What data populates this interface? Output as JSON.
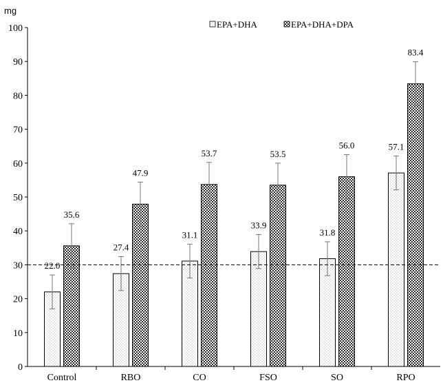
{
  "chart_data": {
    "type": "bar",
    "title": "",
    "xlabel": "",
    "ylabel": "mg",
    "ylim": [
      0,
      100
    ],
    "yticks": [
      0,
      10,
      20,
      30,
      40,
      50,
      60,
      70,
      80,
      90,
      100
    ],
    "categories": [
      "Control",
      "RBO",
      "CO",
      "FSO",
      "SO",
      "RPO"
    ],
    "series": [
      {
        "name": "EPA+DHA",
        "values": [
          22.0,
          27.4,
          31.1,
          33.9,
          31.8,
          57.1
        ],
        "labels": [
          "22.0",
          "27.4",
          "31.1",
          "33.9",
          "31.8",
          "57.1"
        ],
        "error": [
          5.0,
          5.0,
          5.0,
          5.0,
          5.0,
          5.0
        ]
      },
      {
        "name": "EPA+DHA+DPA",
        "values": [
          35.6,
          47.9,
          53.7,
          53.5,
          56.0,
          83.4
        ],
        "labels": [
          "35.6",
          "47.9",
          "53.7",
          "53.5",
          "56.0",
          "83.4"
        ],
        "error": [
          6.5,
          6.5,
          6.5,
          6.5,
          6.5,
          6.5
        ]
      }
    ],
    "reference_line": {
      "value": 30,
      "style": "dashed"
    },
    "legend_position": "top-center",
    "grid": false
  }
}
